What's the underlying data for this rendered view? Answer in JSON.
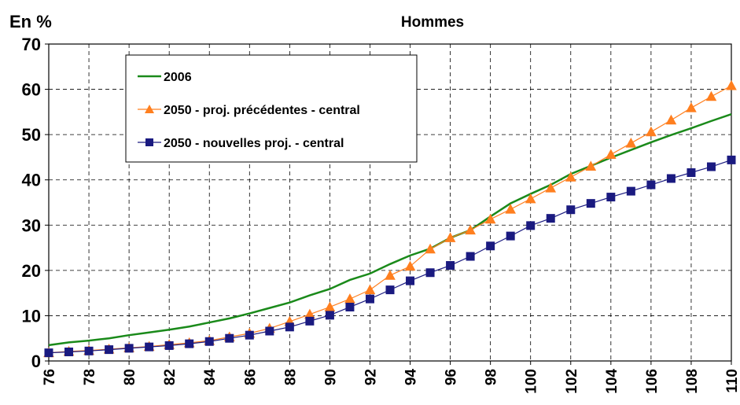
{
  "chart_data": {
    "type": "line",
    "title": "Hommes",
    "y_label": "En %",
    "x": [
      76,
      77,
      78,
      79,
      80,
      81,
      82,
      83,
      84,
      85,
      86,
      87,
      88,
      89,
      90,
      91,
      92,
      93,
      94,
      95,
      96,
      97,
      98,
      99,
      100,
      101,
      102,
      103,
      104,
      105,
      106,
      107,
      108,
      109,
      110
    ],
    "xlim": [
      76,
      110
    ],
    "xticks": [
      76,
      78,
      80,
      82,
      84,
      86,
      88,
      90,
      92,
      94,
      96,
      98,
      100,
      102,
      104,
      106,
      108,
      110
    ],
    "ylim": [
      0,
      70
    ],
    "yticks": [
      0,
      10,
      20,
      30,
      40,
      50,
      60,
      70
    ],
    "grid": true,
    "legend": "upper left",
    "series": [
      {
        "name": "2006",
        "color": "#1a8a1a",
        "marker": "none",
        "values": [
          3.5,
          4.1,
          4.5,
          5.0,
          5.7,
          6.3,
          6.9,
          7.6,
          8.5,
          9.4,
          10.5,
          11.7,
          12.9,
          14.5,
          15.9,
          17.9,
          19.3,
          21.4,
          23.3,
          24.8,
          27.2,
          28.9,
          31.9,
          34.8,
          36.9,
          38.9,
          41.3,
          43.1,
          44.9,
          46.6,
          48.3,
          49.9,
          51.4,
          53.0,
          54.5
        ]
      },
      {
        "name": "2050 - proj. précédentes - central",
        "color": "#ff7f1f",
        "marker": "triangle",
        "values": [
          1.8,
          2.1,
          2.3,
          2.6,
          2.9,
          3.2,
          3.6,
          4.0,
          4.5,
          5.3,
          6.1,
          7.2,
          8.7,
          10.3,
          11.9,
          13.7,
          15.7,
          18.9,
          20.9,
          24.7,
          27.2,
          28.9,
          31.3,
          33.5,
          35.8,
          38.2,
          40.6,
          43.0,
          45.6,
          48.1,
          50.6,
          53.2,
          55.9,
          58.4,
          60.8
        ]
      },
      {
        "name": "2050 - nouvelles proj. - central",
        "color": "#1a1a80",
        "marker": "square",
        "values": [
          1.8,
          2.0,
          2.2,
          2.5,
          2.8,
          3.1,
          3.4,
          3.8,
          4.3,
          5.0,
          5.7,
          6.6,
          7.5,
          8.8,
          10.1,
          11.9,
          13.7,
          15.7,
          17.7,
          19.5,
          21.1,
          23.1,
          25.4,
          27.6,
          29.9,
          31.5,
          33.4,
          34.8,
          36.2,
          37.5,
          38.9,
          40.3,
          41.6,
          42.9,
          44.4
        ]
      }
    ]
  }
}
